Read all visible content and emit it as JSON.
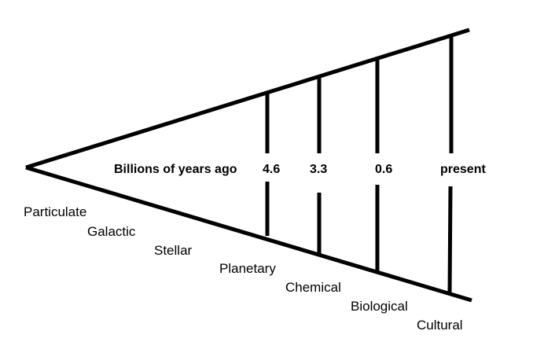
{
  "axis_label": "Billions of years ago",
  "markers": [
    "4.6",
    "3.3",
    "0.6",
    "present"
  ],
  "stages": [
    "Particulate",
    "Galactic",
    "Stellar",
    "Planetary",
    "Chemical",
    "Biological",
    "Cultural"
  ],
  "colors": {
    "line": "#000000",
    "background": "#ffffff"
  }
}
